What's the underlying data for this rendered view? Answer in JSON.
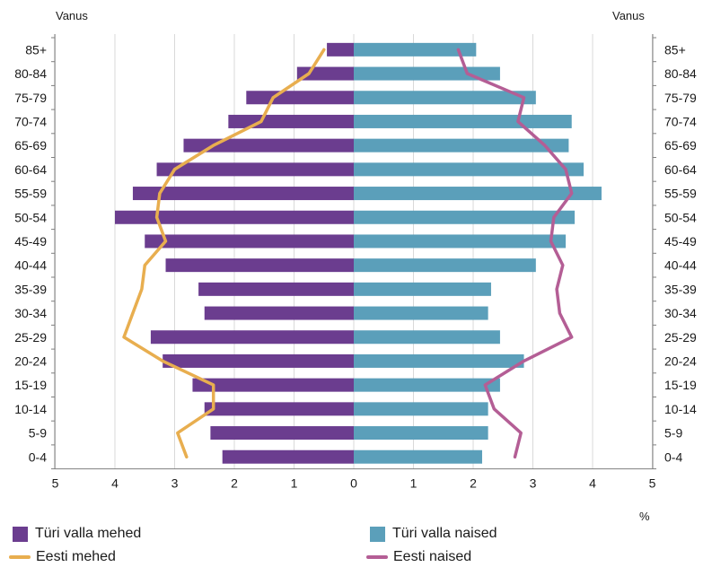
{
  "chart_data": {
    "type": "bar",
    "orientation": "horizontal-population-pyramid",
    "y_axis_label_left": "Vanus",
    "y_axis_label_right": "Vanus",
    "x_unit_label": "%",
    "x_ticks_left": [
      "5",
      "4",
      "3",
      "2",
      "1",
      "0"
    ],
    "x_ticks_right": [
      "1",
      "2",
      "3",
      "4",
      "5"
    ],
    "xlim": [
      -5,
      5
    ],
    "grid": true,
    "categories": [
      "85+",
      "80-84",
      "75-79",
      "70-74",
      "65-69",
      "60-64",
      "55-59",
      "50-54",
      "45-49",
      "40-44",
      "35-39",
      "30-34",
      "25-29",
      "20-24",
      "15-19",
      "10-14",
      "5-9",
      "0-4"
    ],
    "bars": [
      {
        "name": "Türi valla mehed",
        "color": "#6b3d8f",
        "side": "left",
        "values": [
          0.45,
          0.95,
          1.8,
          2.1,
          2.85,
          3.3,
          3.7,
          4.0,
          3.5,
          3.15,
          2.6,
          2.5,
          3.4,
          3.2,
          2.7,
          2.5,
          2.4,
          2.2
        ]
      },
      {
        "name": "Türi valla naised",
        "color": "#5b9fba",
        "side": "right",
        "values": [
          2.05,
          2.45,
          3.05,
          3.65,
          3.6,
          3.85,
          4.15,
          3.7,
          3.55,
          3.05,
          2.3,
          2.25,
          2.45,
          2.85,
          2.45,
          2.25,
          2.25,
          2.15
        ]
      }
    ],
    "lines": [
      {
        "name": "Eesti mehed",
        "color": "#e8ae4f",
        "side": "left",
        "values": [
          0.5,
          0.75,
          1.35,
          1.55,
          2.35,
          3.0,
          3.25,
          3.3,
          3.15,
          3.5,
          3.55,
          3.7,
          3.85,
          3.2,
          2.35,
          2.35,
          2.95,
          2.8
        ]
      },
      {
        "name": "Eesti naised",
        "color": "#b45e95",
        "side": "right",
        "values": [
          1.75,
          1.9,
          2.85,
          2.75,
          3.2,
          3.55,
          3.65,
          3.35,
          3.3,
          3.5,
          3.4,
          3.45,
          3.65,
          2.85,
          2.2,
          2.35,
          2.8,
          2.7
        ]
      }
    ],
    "legend_placement": "bottom"
  }
}
